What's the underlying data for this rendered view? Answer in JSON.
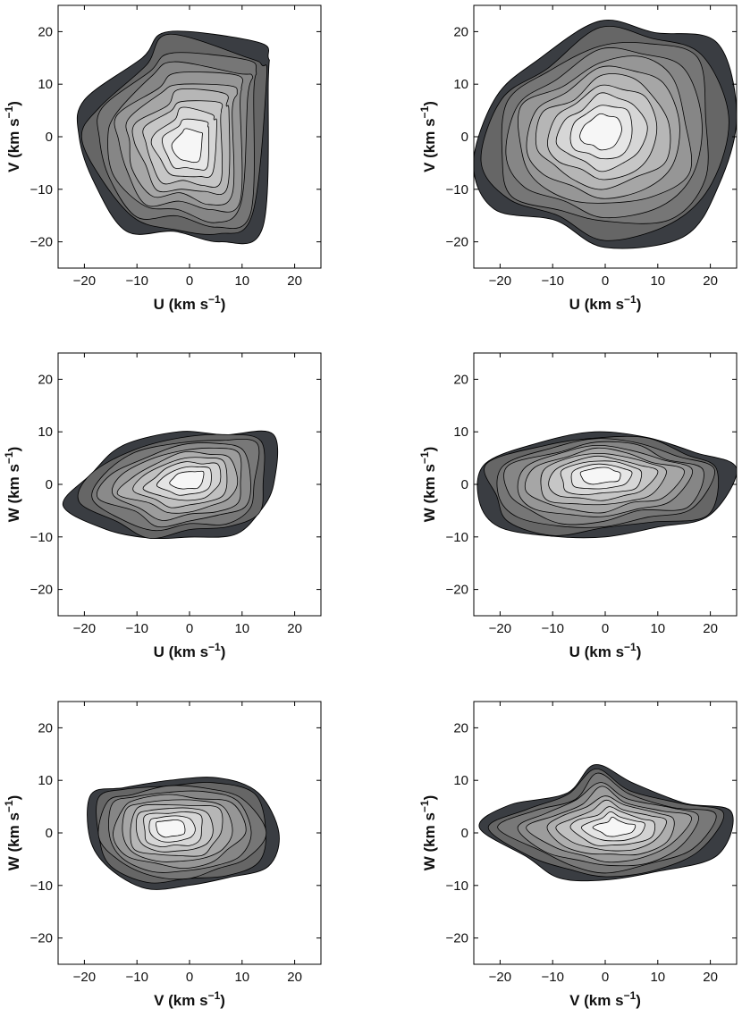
{
  "figure": {
    "panels": [
      {
        "id": "p1",
        "xlabel": "U",
        "ylabel": "V",
        "unit": "(km s",
        "exp": "−1",
        "close": ")"
      },
      {
        "id": "p2",
        "xlabel": "U",
        "ylabel": "V",
        "unit": "(km s",
        "exp": "−1",
        "close": ")"
      },
      {
        "id": "p3",
        "xlabel": "U",
        "ylabel": "W",
        "unit": "(km s",
        "exp": "−1",
        "close": ")"
      },
      {
        "id": "p4",
        "xlabel": "U",
        "ylabel": "W",
        "unit": "(km s",
        "exp": "−1",
        "close": ")"
      },
      {
        "id": "p5",
        "xlabel": "V",
        "ylabel": "W",
        "unit": "(km s",
        "exp": "−1",
        "close": ")"
      },
      {
        "id": "p6",
        "xlabel": "V",
        "ylabel": "W",
        "unit": "(km s",
        "exp": "−1",
        "close": ")"
      }
    ],
    "colors": {
      "outer": "#3a3d42",
      "level2": "#686868",
      "inner_light": "#f2f2f2",
      "line": "#000000",
      "frame": "#000000"
    }
  },
  "chart_data": [
    {
      "type": "contour",
      "panel": "top-left",
      "xlabel": "U (km s−1)",
      "ylabel": "V (km s−1)",
      "xlim": [
        -25,
        25
      ],
      "ylim": [
        -25,
        25
      ],
      "xticks": [
        -20,
        -10,
        0,
        10,
        20
      ],
      "yticks": [
        -20,
        -10,
        0,
        10,
        20
      ],
      "peak": [
        0,
        -2
      ],
      "levels": 11,
      "outer_contour": {
        "angles_deg": [
          0,
          30,
          60,
          90,
          120,
          150,
          180,
          210,
          240,
          270,
          300,
          330
        ],
        "radii": [
          [
            15,
            11
          ],
          [
            15,
            15
          ],
          [
            13,
            18
          ],
          [
            -4,
            20
          ],
          [
            -9,
            15
          ],
          [
            -20,
            7
          ],
          [
            -21,
            0
          ],
          [
            -18,
            -9
          ],
          [
            -12,
            -18
          ],
          [
            -3,
            -18
          ],
          [
            6,
            -20
          ],
          [
            14,
            -17
          ]
        ]
      }
    },
    {
      "type": "contour",
      "panel": "top-right",
      "xlabel": "U (km s−1)",
      "ylabel": "V (km s−1)",
      "xlim": [
        -25,
        25
      ],
      "ylim": [
        -25,
        25
      ],
      "xticks": [
        -20,
        -10,
        0,
        10,
        20
      ],
      "yticks": [
        -20,
        -10,
        0,
        10,
        20
      ],
      "peak": [
        -1,
        1
      ],
      "levels": 11,
      "outer_contour": {
        "angles_deg": [
          0,
          30,
          60,
          90,
          120,
          150,
          180,
          210,
          240,
          270,
          300,
          330
        ],
        "radii": [
          [
            25,
            4
          ],
          [
            20,
            17
          ],
          [
            10,
            21
          ],
          [
            -1,
            22
          ],
          [
            -12,
            14
          ],
          [
            -22,
            8
          ],
          [
            -25,
            -5
          ],
          [
            -20,
            -13
          ],
          [
            -10,
            -17
          ],
          [
            0,
            -21
          ],
          [
            14,
            -18
          ],
          [
            23,
            -10
          ]
        ]
      }
    },
    {
      "type": "contour",
      "panel": "middle-left",
      "xlabel": "U (km s−1)",
      "ylabel": "W (km s−1)",
      "xlim": [
        -25,
        25
      ],
      "ylim": [
        -25,
        25
      ],
      "xticks": [
        -20,
        -10,
        0,
        10,
        20
      ],
      "yticks": [
        -20,
        -10,
        0,
        10,
        20
      ],
      "peak": [
        0,
        1
      ],
      "levels": 10,
      "outer_contour": {
        "angles_deg": [
          0,
          30,
          60,
          90,
          120,
          150,
          180,
          210,
          240,
          270,
          300,
          330
        ],
        "radii": [
          [
            16,
            0
          ],
          [
            15,
            9
          ],
          [
            7,
            10
          ],
          [
            -2,
            10
          ],
          [
            -12,
            7
          ],
          [
            -20,
            2
          ],
          [
            -24,
            -4
          ],
          [
            -15,
            -8
          ],
          [
            -8,
            -11
          ],
          [
            0,
            -10
          ],
          [
            8,
            -9
          ],
          [
            14,
            -6
          ]
        ]
      }
    },
    {
      "type": "contour",
      "panel": "middle-right",
      "xlabel": "U (km s−1)",
      "ylabel": "W (km s−1)",
      "xlim": [
        -25,
        25
      ],
      "ylim": [
        -25,
        25
      ],
      "xticks": [
        -20,
        -10,
        0,
        10,
        20
      ],
      "yticks": [
        -20,
        -10,
        0,
        10,
        20
      ],
      "peak": [
        -1,
        2
      ],
      "levels": 11,
      "outer_contour": {
        "angles_deg": [
          0,
          30,
          60,
          90,
          120,
          150,
          180,
          210,
          240,
          270,
          300,
          330
        ],
        "radii": [
          [
            25,
            3
          ],
          [
            17,
            6
          ],
          [
            8,
            9
          ],
          [
            -2,
            10
          ],
          [
            -12,
            8
          ],
          [
            -23,
            4
          ],
          [
            -24,
            -3
          ],
          [
            -20,
            -8
          ],
          [
            -10,
            -10
          ],
          [
            0,
            -10
          ],
          [
            10,
            -8
          ],
          [
            20,
            -6
          ]
        ]
      }
    },
    {
      "type": "contour",
      "panel": "bottom-left",
      "xlabel": "V (km s−1)",
      "ylabel": "W (km s−1)",
      "xlim": [
        -25,
        25
      ],
      "ylim": [
        -25,
        25
      ],
      "xticks": [
        -20,
        -10,
        0,
        10,
        20
      ],
      "yticks": [
        -20,
        -10,
        0,
        10,
        20
      ],
      "peak": [
        -4,
        1
      ],
      "levels": 11,
      "outer_contour": {
        "angles_deg": [
          0,
          30,
          60,
          90,
          120,
          150,
          180,
          210,
          240,
          270,
          300,
          330
        ],
        "radii": [
          [
            17,
            0
          ],
          [
            14,
            8
          ],
          [
            5,
            10
          ],
          [
            -4,
            10
          ],
          [
            -13,
            9
          ],
          [
            -18,
            7
          ],
          [
            -19,
            -1
          ],
          [
            -16,
            -7
          ],
          [
            -8,
            -10
          ],
          [
            0,
            -10
          ],
          [
            8,
            -9
          ],
          [
            14,
            -6
          ]
        ]
      }
    },
    {
      "type": "contour",
      "panel": "bottom-right",
      "xlabel": "V (km s−1)",
      "ylabel": "W (km s−1)",
      "xlim": [
        -25,
        25
      ],
      "ylim": [
        -25,
        25
      ],
      "xticks": [
        -20,
        -10,
        0,
        10,
        20
      ],
      "yticks": [
        -20,
        -10,
        0,
        10,
        20
      ],
      "peak": [
        2,
        1
      ],
      "levels": 10,
      "outer_contour": {
        "angles_deg": [
          0,
          30,
          60,
          90,
          120,
          150,
          180,
          210,
          240,
          270,
          300,
          330
        ],
        "radii": [
          [
            24,
            4
          ],
          [
            16,
            6
          ],
          [
            5,
            9
          ],
          [
            -2,
            13
          ],
          [
            -8,
            8
          ],
          [
            -17,
            5
          ],
          [
            -24,
            1
          ],
          [
            -16,
            -5
          ],
          [
            -8,
            -8
          ],
          [
            0,
            -9
          ],
          [
            10,
            -8
          ],
          [
            20,
            -4
          ]
        ]
      }
    }
  ]
}
